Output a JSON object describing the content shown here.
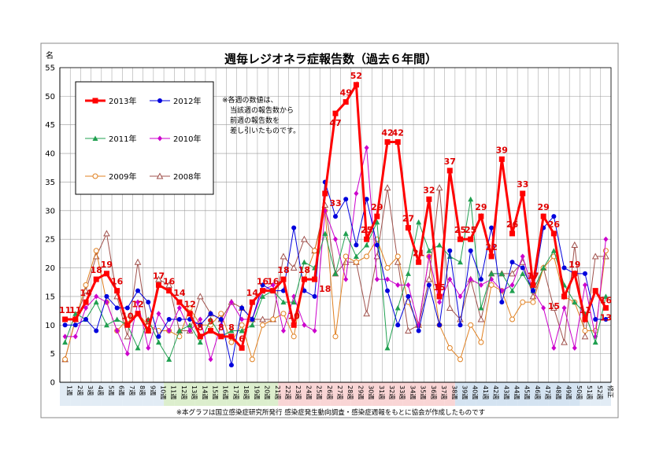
{
  "unit_label": "名",
  "note_lines": [
    "※各週の数値は、",
    "当該週の報告数から",
    "前週の報告数を",
    "差し引いたものです。"
  ],
  "footer": "※本グラフは国立感染症研究所発行 感染症発生動向調査・感染症週報をもとに協会が作成したものです",
  "colors": {
    "s2013": "#ff0000",
    "s2012": "#0000dd",
    "s2011": "#20a050",
    "s2010": "#cc00cc",
    "s2009": "#e08020",
    "s2008": "#a0524d",
    "shade_green": "#d8ecc8",
    "shade_blue": "#cfe0ef",
    "shade_pink": "#f8d0d0",
    "grid": "#999999"
  },
  "chart_data": {
    "type": "line",
    "title": "週毎レジオネラ症報告数（過去６年間）",
    "ylim": [
      0,
      55
    ],
    "yticks": [
      0,
      5,
      10,
      15,
      20,
      25,
      30,
      35,
      40,
      45,
      50,
      55
    ],
    "grid": true,
    "legend_placement": "top-left",
    "categories": [
      "1週",
      "2週",
      "3週",
      "4週",
      "5週",
      "6週",
      "7週",
      "8週",
      "9週",
      "10週",
      "11週",
      "12週",
      "13週",
      "14週",
      "15週",
      "16週",
      "17週",
      "18週",
      "19週",
      "20週",
      "21週",
      "22週",
      "23週",
      "24週",
      "25週",
      "26週",
      "27週",
      "28週",
      "29週",
      "30週",
      "31週",
      "32週",
      "33週",
      "34週",
      "35週",
      "36週",
      "37週",
      "38週",
      "39週",
      "40週",
      "41週",
      "42週",
      "43週",
      "44週",
      "45週",
      "46週",
      "47週",
      "48週",
      "49週",
      "50週",
      "51週",
      "52週",
      "修正"
    ],
    "series": [
      {
        "name": "2013年",
        "values": [
          11,
          11,
          14,
          18,
          19,
          16,
          10,
          12,
          9,
          17,
          16,
          14,
          12,
          8,
          9,
          8,
          8,
          6,
          14,
          16,
          16,
          18,
          10,
          18,
          18,
          33,
          47,
          49,
          52,
          25,
          29,
          42,
          42,
          27,
          21,
          32,
          15,
          37,
          25,
          25,
          29,
          22,
          39,
          26,
          33,
          17,
          29,
          26,
          15,
          19,
          11,
          16,
          13
        ]
      },
      {
        "name": "2012年",
        "values": [
          10,
          10,
          11,
          9,
          15,
          13,
          13,
          16,
          14,
          8,
          11,
          11,
          11,
          10,
          12,
          11,
          3,
          13,
          11,
          17,
          16,
          16,
          27,
          16,
          15,
          35,
          29,
          32,
          24,
          32,
          24,
          16,
          10,
          15,
          9,
          17,
          10,
          23,
          10,
          23,
          18,
          27,
          14,
          21,
          20,
          16,
          27,
          29,
          20,
          19,
          19,
          11,
          11
        ]
      },
      {
        "name": "2011年",
        "values": [
          7,
          12,
          11,
          14,
          10,
          11,
          10,
          6,
          11,
          7,
          4,
          9,
          10,
          7,
          11,
          8,
          9,
          9,
          10,
          15,
          16,
          14,
          14,
          21,
          20,
          26,
          19,
          26,
          22,
          24,
          28,
          6,
          13,
          19,
          28,
          23,
          24,
          22,
          21,
          32,
          13,
          19,
          19,
          16,
          19,
          16,
          20,
          23,
          17,
          14,
          12,
          7,
          15
        ]
      },
      {
        "name": "2010年",
        "values": [
          8,
          8,
          13,
          15,
          14,
          9,
          5,
          14,
          6,
          12,
          9,
          13,
          9,
          11,
          4,
          10,
          14,
          11,
          11,
          16,
          17,
          9,
          15,
          10,
          9,
          30,
          25,
          18,
          33,
          41,
          18,
          18,
          17,
          17,
          10,
          22,
          14,
          18,
          15,
          18,
          17,
          18,
          16,
          17,
          22,
          16,
          13,
          6,
          13,
          6,
          17,
          8,
          25
        ]
      },
      {
        "name": "2009年",
        "values": [
          4,
          11,
          17,
          23,
          14,
          9,
          11,
          12,
          10,
          9,
          9,
          8,
          13,
          10,
          10,
          12,
          7,
          10,
          4,
          10,
          11,
          12,
          8,
          18,
          23,
          30,
          8,
          22,
          21,
          22,
          25,
          20,
          22,
          14,
          10,
          22,
          10,
          6,
          4,
          10,
          7,
          17,
          16,
          11,
          14,
          14,
          20,
          22,
          15,
          14,
          9,
          9,
          23
        ]
      },
      {
        "name": "2008年",
        "values": [
          4,
          11,
          16,
          22,
          26,
          15,
          8,
          21,
          9,
          18,
          17,
          9,
          9,
          15,
          12,
          11,
          14,
          13,
          11,
          11,
          11,
          22,
          20,
          25,
          23,
          31,
          19,
          21,
          21,
          12,
          22,
          34,
          21,
          9,
          10,
          18,
          34,
          13,
          11,
          18,
          11,
          19,
          19,
          19,
          21,
          15,
          20,
          13,
          7,
          24,
          8,
          22,
          22
        ]
      }
    ],
    "data_labels_2013": [
      {
        "week": 1,
        "text": "11"
      },
      {
        "week": 2,
        "text": "11"
      },
      {
        "week": 3,
        "text": "14"
      },
      {
        "week": 4,
        "text": "18"
      },
      {
        "week": 5,
        "text": "19"
      },
      {
        "week": 6,
        "text": "16"
      },
      {
        "week": 7,
        "text": "10"
      },
      {
        "week": 8,
        "text": "12"
      },
      {
        "week": 9,
        "text": "9"
      },
      {
        "week": 10,
        "text": "17"
      },
      {
        "week": 11,
        "text": "16"
      },
      {
        "week": 12,
        "text": "14"
      },
      {
        "week": 13,
        "text": "12"
      },
      {
        "week": 14,
        "text": "8"
      },
      {
        "week": 15,
        "text": "9"
      },
      {
        "week": 16,
        "text": "8"
      },
      {
        "week": 17,
        "text": "8"
      },
      {
        "week": 18,
        "text": "6"
      },
      {
        "week": 19,
        "text": "14"
      },
      {
        "week": 20,
        "text": "16"
      },
      {
        "week": 21,
        "text": "16"
      },
      {
        "week": 22,
        "text": "18"
      },
      {
        "week": 23,
        "text": "10"
      },
      {
        "week": 24,
        "text": "18"
      },
      {
        "week": 26,
        "text": "18"
      },
      {
        "week": 27,
        "text": "33"
      },
      {
        "week": 27,
        "text": "47"
      },
      {
        "week": 28,
        "text": "49"
      },
      {
        "week": 29,
        "text": "52"
      },
      {
        "week": 30,
        "text": "25"
      },
      {
        "week": 31,
        "text": "29"
      },
      {
        "week": 32,
        "text": "42"
      },
      {
        "week": 33,
        "text": "42"
      },
      {
        "week": 34,
        "text": "27"
      },
      {
        "week": 35,
        "text": "21"
      },
      {
        "week": 36,
        "text": "32"
      },
      {
        "week": 37,
        "text": "15"
      },
      {
        "week": 38,
        "text": "37"
      },
      {
        "week": 39,
        "text": "25"
      },
      {
        "week": 40,
        "text": "25"
      },
      {
        "week": 41,
        "text": "29"
      },
      {
        "week": 42,
        "text": "22"
      },
      {
        "week": 43,
        "text": "39"
      },
      {
        "week": 44,
        "text": "26"
      },
      {
        "week": 45,
        "text": "33"
      },
      {
        "week": 46,
        "text": "17"
      },
      {
        "week": 47,
        "text": "29"
      },
      {
        "week": 48,
        "text": "26"
      },
      {
        "week": 48,
        "text": "15"
      },
      {
        "week": 50,
        "text": "19"
      },
      {
        "week": 51,
        "text": "11"
      },
      {
        "week": 53,
        "text": "16"
      },
      {
        "week": 53,
        "text": "13"
      }
    ]
  }
}
